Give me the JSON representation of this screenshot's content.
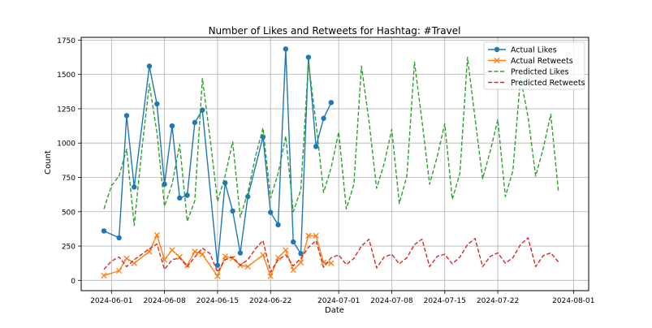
{
  "chart_data": {
    "type": "line",
    "title": "Number of Likes and Retweets for Hashtag: #Travel",
    "xlabel": "Date",
    "ylabel": "Count",
    "xlim": [
      "2024-05-28",
      "2024-08-03"
    ],
    "ylim": [
      -75,
      1770
    ],
    "x_ticks": [
      "2024-06-01",
      "2024-06-08",
      "2024-06-15",
      "2024-06-22",
      "2024-07-01",
      "2024-07-08",
      "2024-07-15",
      "2024-07-22",
      "2024-08-01"
    ],
    "y_ticks": [
      0,
      250,
      500,
      750,
      1000,
      1250,
      1500,
      1750
    ],
    "grid": true,
    "legend_position": "top-right",
    "series": [
      {
        "name": "Actual Likes",
        "color": "#1f77b4",
        "style": "solid",
        "marker": "circle",
        "points": [
          [
            "2024-05-31",
            360
          ],
          [
            "2024-06-02",
            310
          ],
          [
            "2024-06-03",
            1200
          ],
          [
            "2024-06-04",
            680
          ],
          [
            "2024-06-06",
            1560
          ],
          [
            "2024-06-07",
            1285
          ],
          [
            "2024-06-08",
            700
          ],
          [
            "2024-06-09",
            1125
          ],
          [
            "2024-06-10",
            600
          ],
          [
            "2024-06-11",
            620
          ],
          [
            "2024-06-12",
            1150
          ],
          [
            "2024-06-13",
            1240
          ],
          [
            "2024-06-15",
            110
          ],
          [
            "2024-06-16",
            710
          ],
          [
            "2024-06-17",
            505
          ],
          [
            "2024-06-18",
            200
          ],
          [
            "2024-06-19",
            610
          ],
          [
            "2024-06-21",
            1045
          ],
          [
            "2024-06-22",
            495
          ],
          [
            "2024-06-23",
            405
          ],
          [
            "2024-06-24",
            1685
          ],
          [
            "2024-06-25",
            280
          ],
          [
            "2024-06-26",
            195
          ],
          [
            "2024-06-27",
            1625
          ],
          [
            "2024-06-28",
            975
          ],
          [
            "2024-06-29",
            1180
          ],
          [
            "2024-06-30",
            1295
          ]
        ]
      },
      {
        "name": "Actual Retweets",
        "color": "#ff7f0e",
        "style": "solid",
        "marker": "x",
        "points": [
          [
            "2024-05-31",
            35
          ],
          [
            "2024-06-02",
            70
          ],
          [
            "2024-06-03",
            160
          ],
          [
            "2024-06-04",
            125
          ],
          [
            "2024-06-06",
            210
          ],
          [
            "2024-06-07",
            330
          ],
          [
            "2024-06-08",
            150
          ],
          [
            "2024-06-09",
            220
          ],
          [
            "2024-06-10",
            170
          ],
          [
            "2024-06-11",
            110
          ],
          [
            "2024-06-12",
            210
          ],
          [
            "2024-06-13",
            190
          ],
          [
            "2024-06-15",
            30
          ],
          [
            "2024-06-16",
            175
          ],
          [
            "2024-06-17",
            160
          ],
          [
            "2024-06-18",
            110
          ],
          [
            "2024-06-19",
            100
          ],
          [
            "2024-06-21",
            185
          ],
          [
            "2024-06-22",
            30
          ],
          [
            "2024-06-23",
            165
          ],
          [
            "2024-06-24",
            220
          ],
          [
            "2024-06-25",
            75
          ],
          [
            "2024-06-26",
            130
          ],
          [
            "2024-06-27",
            325
          ],
          [
            "2024-06-28",
            325
          ],
          [
            "2024-06-29",
            130
          ],
          [
            "2024-06-30",
            125
          ]
        ]
      },
      {
        "name": "Predicted Likes",
        "color": "#2ca02c",
        "style": "dashed",
        "points": [
          [
            "2024-05-31",
            520
          ],
          [
            "2024-06-01",
            690
          ],
          [
            "2024-06-02",
            760
          ],
          [
            "2024-06-03",
            955
          ],
          [
            "2024-06-04",
            400
          ],
          [
            "2024-06-05",
            950
          ],
          [
            "2024-06-06",
            1430
          ],
          [
            "2024-06-07",
            1075
          ],
          [
            "2024-06-08",
            540
          ],
          [
            "2024-06-09",
            700
          ],
          [
            "2024-06-10",
            990
          ],
          [
            "2024-06-11",
            430
          ],
          [
            "2024-06-12",
            580
          ],
          [
            "2024-06-13",
            1470
          ],
          [
            "2024-06-14",
            1040
          ],
          [
            "2024-06-15",
            575
          ],
          [
            "2024-06-16",
            760
          ],
          [
            "2024-06-17",
            1010
          ],
          [
            "2024-06-18",
            460
          ],
          [
            "2024-06-19",
            640
          ],
          [
            "2024-06-20",
            900
          ],
          [
            "2024-06-21",
            1110
          ],
          [
            "2024-06-22",
            600
          ],
          [
            "2024-06-23",
            780
          ],
          [
            "2024-06-24",
            1050
          ],
          [
            "2024-06-25",
            500
          ],
          [
            "2024-06-26",
            660
          ],
          [
            "2024-06-27",
            1590
          ],
          [
            "2024-06-28",
            1150
          ],
          [
            "2024-06-29",
            640
          ],
          [
            "2024-06-30",
            820
          ],
          [
            "2024-07-01",
            1080
          ],
          [
            "2024-07-02",
            520
          ],
          [
            "2024-07-03",
            700
          ],
          [
            "2024-07-04",
            1560
          ],
          [
            "2024-07-05",
            1160
          ],
          [
            "2024-07-06",
            670
          ],
          [
            "2024-07-07",
            850
          ],
          [
            "2024-07-08",
            1100
          ],
          [
            "2024-07-09",
            560
          ],
          [
            "2024-07-10",
            760
          ],
          [
            "2024-07-11",
            1590
          ],
          [
            "2024-07-12",
            1160
          ],
          [
            "2024-07-13",
            700
          ],
          [
            "2024-07-14",
            900
          ],
          [
            "2024-07-15",
            1140
          ],
          [
            "2024-07-16",
            590
          ],
          [
            "2024-07-17",
            780
          ],
          [
            "2024-07-18",
            1625
          ],
          [
            "2024-07-19",
            1180
          ],
          [
            "2024-07-20",
            740
          ],
          [
            "2024-07-21",
            940
          ],
          [
            "2024-07-22",
            1170
          ],
          [
            "2024-07-23",
            610
          ],
          [
            "2024-07-24",
            800
          ],
          [
            "2024-07-25",
            1480
          ],
          [
            "2024-07-26",
            1190
          ],
          [
            "2024-07-27",
            760
          ],
          [
            "2024-07-28",
            960
          ],
          [
            "2024-07-29",
            1210
          ],
          [
            "2024-07-30",
            650
          ]
        ]
      },
      {
        "name": "Predicted Retweets",
        "color": "#d62728",
        "style": "dashed",
        "points": [
          [
            "2024-05-31",
            80
          ],
          [
            "2024-06-01",
            140
          ],
          [
            "2024-06-02",
            170
          ],
          [
            "2024-06-03",
            100
          ],
          [
            "2024-06-04",
            150
          ],
          [
            "2024-06-05",
            190
          ],
          [
            "2024-06-06",
            230
          ],
          [
            "2024-06-07",
            265
          ],
          [
            "2024-06-08",
            80
          ],
          [
            "2024-06-09",
            150
          ],
          [
            "2024-06-10",
            165
          ],
          [
            "2024-06-11",
            100
          ],
          [
            "2024-06-12",
            170
          ],
          [
            "2024-06-13",
            235
          ],
          [
            "2024-06-14",
            195
          ],
          [
            "2024-06-15",
            60
          ],
          [
            "2024-06-16",
            150
          ],
          [
            "2024-06-17",
            170
          ],
          [
            "2024-06-18",
            110
          ],
          [
            "2024-06-19",
            150
          ],
          [
            "2024-06-20",
            230
          ],
          [
            "2024-06-21",
            290
          ],
          [
            "2024-06-22",
            60
          ],
          [
            "2024-06-23",
            150
          ],
          [
            "2024-06-24",
            185
          ],
          [
            "2024-06-25",
            105
          ],
          [
            "2024-06-26",
            160
          ],
          [
            "2024-06-27",
            240
          ],
          [
            "2024-06-28",
            290
          ],
          [
            "2024-06-29",
            95
          ],
          [
            "2024-06-30",
            165
          ],
          [
            "2024-07-01",
            185
          ],
          [
            "2024-07-02",
            115
          ],
          [
            "2024-07-03",
            160
          ],
          [
            "2024-07-04",
            250
          ],
          [
            "2024-07-05",
            300
          ],
          [
            "2024-07-06",
            90
          ],
          [
            "2024-07-07",
            170
          ],
          [
            "2024-07-08",
            190
          ],
          [
            "2024-07-09",
            120
          ],
          [
            "2024-07-10",
            165
          ],
          [
            "2024-07-11",
            260
          ],
          [
            "2024-07-12",
            300
          ],
          [
            "2024-07-13",
            100
          ],
          [
            "2024-07-14",
            175
          ],
          [
            "2024-07-15",
            190
          ],
          [
            "2024-07-16",
            120
          ],
          [
            "2024-07-17",
            170
          ],
          [
            "2024-07-18",
            260
          ],
          [
            "2024-07-19",
            305
          ],
          [
            "2024-07-20",
            100
          ],
          [
            "2024-07-21",
            175
          ],
          [
            "2024-07-22",
            200
          ],
          [
            "2024-07-23",
            125
          ],
          [
            "2024-07-24",
            165
          ],
          [
            "2024-07-25",
            260
          ],
          [
            "2024-07-26",
            310
          ],
          [
            "2024-07-27",
            100
          ],
          [
            "2024-07-28",
            180
          ],
          [
            "2024-07-29",
            200
          ],
          [
            "2024-07-30",
            135
          ]
        ]
      }
    ]
  }
}
